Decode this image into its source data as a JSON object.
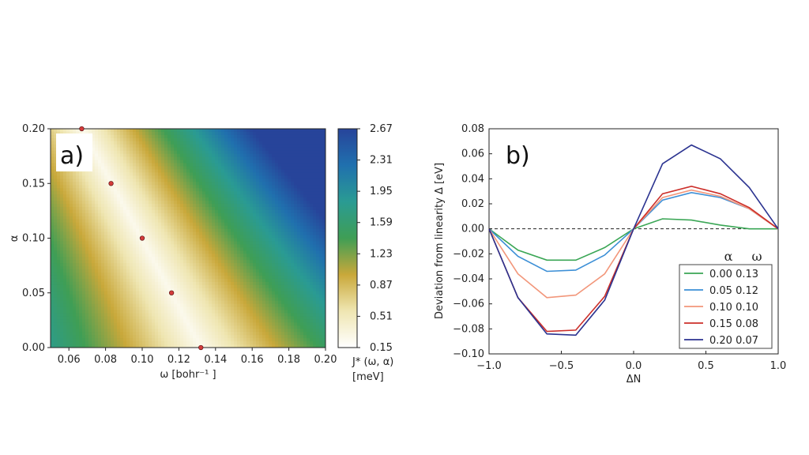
{
  "chart_data": [
    {
      "type": "heatmap",
      "panel_label": "a)",
      "xlabel": "ω [bohr⁻¹ ]",
      "ylabel": "α",
      "xlim": [
        0.05,
        0.2
      ],
      "ylim": [
        0.0,
        0.2
      ],
      "x_ticks": [
        "0.06",
        "0.08",
        "0.10",
        "0.12",
        "0.14",
        "0.16",
        "0.18",
        "0.20"
      ],
      "y_ticks": [
        "0.00",
        "0.05",
        "0.10",
        "0.15",
        "0.20"
      ],
      "colorbar": {
        "label_line1": "J* (ω, α)",
        "label_line2": "[meV]",
        "ticks": [
          "0.15",
          "0.51",
          "0.87",
          "1.23",
          "1.59",
          "1.95",
          "2.31",
          "2.67"
        ],
        "min": 0.15,
        "max": 2.67,
        "colors": [
          "#ffffff",
          "#efe6b2",
          "#c9a83a",
          "#3f9e55",
          "#2a9b93",
          "#2070ae",
          "#27449a"
        ]
      },
      "minima_points": [
        {
          "x": 0.067,
          "y": 0.2
        },
        {
          "x": 0.083,
          "y": 0.15
        },
        {
          "x": 0.1,
          "y": 0.1
        },
        {
          "x": 0.116,
          "y": 0.05
        },
        {
          "x": 0.132,
          "y": 0.0
        }
      ],
      "marker_color": "#d43b3b"
    },
    {
      "type": "line",
      "panel_label": "b)",
      "xlabel": "ΔN",
      "ylabel": "Deviation from linearity Δ  [eV]",
      "xlim": [
        -1.0,
        1.0
      ],
      "ylim": [
        -0.1,
        0.08
      ],
      "x_ticks": [
        "−1.0",
        "−0.5",
        "0.0",
        "0.5",
        "1.0"
      ],
      "y_ticks": [
        "−0.10",
        "−0.08",
        "−0.06",
        "−0.04",
        "−0.02",
        "0.00",
        "0.02",
        "0.04",
        "0.06",
        "0.08"
      ],
      "x": [
        -1.0,
        -0.8,
        -0.6,
        -0.4,
        -0.2,
        0.0,
        0.2,
        0.4,
        0.6,
        0.8,
        1.0
      ],
      "legend_header": {
        "col1": "α",
        "col2": "ω"
      },
      "legend_position": "lower-right",
      "series": [
        {
          "name": "0.00 0.13",
          "color": "#3aa655",
          "values": [
            0.0,
            -0.017,
            -0.025,
            -0.025,
            -0.015,
            0.0,
            0.008,
            0.007,
            0.003,
            0.0,
            0.0
          ]
        },
        {
          "name": "0.05 0.12",
          "color": "#3c8fd6",
          "values": [
            0.0,
            -0.022,
            -0.034,
            -0.033,
            -0.021,
            0.0,
            0.023,
            0.029,
            0.025,
            0.016,
            0.0
          ]
        },
        {
          "name": "0.10 0.10",
          "color": "#f2967a",
          "values": [
            0.0,
            -0.036,
            -0.055,
            -0.053,
            -0.036,
            0.0,
            0.025,
            0.031,
            0.026,
            0.016,
            0.0
          ]
        },
        {
          "name": "0.15 0.08",
          "color": "#cc2f2a",
          "values": [
            0.0,
            -0.055,
            -0.082,
            -0.081,
            -0.054,
            0.0,
            0.028,
            0.034,
            0.028,
            0.017,
            0.0
          ]
        },
        {
          "name": "0.20 0.07",
          "color": "#2b3390",
          "values": [
            0.0,
            -0.055,
            -0.084,
            -0.085,
            -0.057,
            0.0,
            0.052,
            0.067,
            0.056,
            0.033,
            0.0
          ]
        }
      ],
      "reference_line": {
        "y": 0.0,
        "style": "dashed"
      }
    }
  ]
}
